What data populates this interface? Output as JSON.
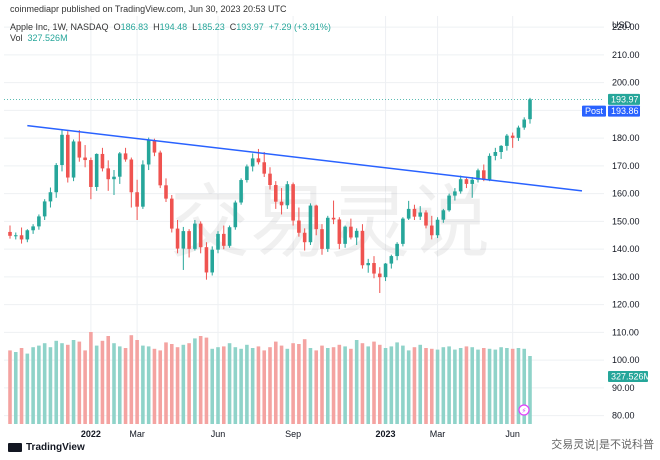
{
  "header": {
    "line1": "coinmediapr published on TradingView.com, Jun 30, 2023 20:53 UTC",
    "symbol": "Apple Inc, 1W, NASDAQ",
    "o_key": "O",
    "o_val": "186.83",
    "h_key": "H",
    "h_val": "194.48",
    "l_key": "L",
    "l_val": "185.23",
    "c_key": "C",
    "c_val": "193.97",
    "change": "+7.29 (+3.91%)",
    "vol_key": "Vol",
    "vol_val": "327.526M"
  },
  "branding": {
    "tradingview": "TradingView",
    "watermark": "交易灵说",
    "wechat": "交易灵说|是不说科普"
  },
  "colors": {
    "up": "#26a69a",
    "down": "#ef5350",
    "vol_up": "#8fd3c9",
    "vol_down": "#f4a3a1",
    "trendline": "#2962ff",
    "post_badge": "#2962ff",
    "price_badge": "#26a69a"
  },
  "chart_data": {
    "type": "candlestick",
    "currency": "USD",
    "y_ticks": [
      "220.00",
      "210.00",
      "200.00",
      "190.00",
      "180.00",
      "170.00",
      "160.00",
      "150.00",
      "140.00",
      "130.00",
      "120.00",
      "110.00",
      "100.00",
      "90.00",
      "80.00"
    ],
    "ylim": [
      77,
      224
    ],
    "x_tick_labels": [
      {
        "label": "2022",
        "i": 14
      },
      {
        "label": "Mar",
        "i": 22
      },
      {
        "label": "Jun",
        "i": 36
      },
      {
        "label": "Sep",
        "i": 49
      },
      {
        "label": "2023",
        "i": 65
      },
      {
        "label": "Mar",
        "i": 74
      },
      {
        "label": "Jun",
        "i": 87
      }
    ],
    "last_price": "193.97",
    "post_label": "Post",
    "post_price": "193.86",
    "volume_label": "327.526M",
    "trendline": {
      "start": {
        "i": 3,
        "price": 184.5
      },
      "end": {
        "i": 99,
        "price": 161.0
      }
    },
    "candles": [
      [
        146.2,
        148.5,
        143.8,
        144.8
      ],
      [
        144.8,
        146.0,
        143.5,
        145.0
      ],
      [
        145.0,
        147.8,
        142.0,
        143.5
      ],
      [
        143.5,
        147.2,
        142.5,
        146.8
      ],
      [
        146.8,
        149.0,
        145.5,
        148.2
      ],
      [
        148.2,
        152.5,
        147.0,
        151.8
      ],
      [
        151.8,
        158.0,
        150.5,
        157.2
      ],
      [
        157.2,
        162.2,
        155.0,
        160.5
      ],
      [
        160.5,
        171.0,
        158.5,
        170.3
      ],
      [
        170.3,
        182.8,
        168.0,
        181.2
      ],
      [
        181.2,
        182.5,
        164.0,
        165.8
      ],
      [
        165.8,
        179.5,
        164.5,
        178.8
      ],
      [
        178.8,
        182.9,
        171.5,
        173.0
      ],
      [
        173.0,
        177.5,
        169.5,
        172.1
      ],
      [
        172.1,
        173.0,
        158.0,
        162.4
      ],
      [
        162.4,
        174.5,
        161.0,
        174.3
      ],
      [
        174.3,
        176.5,
        168.0,
        169.1
      ],
      [
        169.1,
        172.0,
        161.0,
        165.2
      ],
      [
        165.2,
        168.5,
        159.5,
        166.1
      ],
      [
        166.1,
        175.0,
        163.5,
        174.5
      ],
      [
        174.5,
        176.5,
        171.5,
        172.3
      ],
      [
        172.3,
        173.0,
        155.0,
        160.5
      ],
      [
        160.5,
        165.0,
        150.5,
        155.3
      ],
      [
        155.3,
        172.0,
        154.5,
        170.5
      ],
      [
        170.5,
        180.2,
        168.5,
        179.2
      ],
      [
        179.2,
        179.8,
        173.5,
        174.8
      ],
      [
        174.8,
        175.5,
        162.0,
        163.0
      ],
      [
        163.0,
        165.5,
        157.0,
        158.2
      ],
      [
        158.2,
        159.5,
        146.0,
        147.4
      ],
      [
        147.4,
        150.5,
        138.5,
        140.2
      ],
      [
        140.2,
        148.0,
        132.5,
        146.5
      ],
      [
        146.5,
        147.2,
        137.0,
        140.1
      ],
      [
        140.1,
        150.5,
        139.5,
        149.2
      ],
      [
        149.2,
        150.0,
        138.5,
        140.7
      ],
      [
        140.7,
        142.5,
        129.0,
        131.6
      ],
      [
        131.6,
        141.0,
        130.5,
        139.8
      ],
      [
        139.8,
        146.5,
        138.5,
        145.5
      ],
      [
        145.5,
        148.5,
        140.0,
        141.2
      ],
      [
        141.2,
        148.5,
        140.5,
        147.9
      ],
      [
        147.9,
        157.5,
        147.0,
        156.8
      ],
      [
        156.8,
        165.5,
        156.0,
        164.9
      ],
      [
        164.9,
        170.5,
        164.0,
        169.8
      ],
      [
        169.8,
        174.5,
        168.0,
        172.7
      ],
      [
        172.7,
        176.1,
        170.5,
        171.3
      ],
      [
        171.3,
        175.0,
        166.0,
        167.2
      ],
      [
        167.2,
        169.5,
        161.5,
        163.1
      ],
      [
        163.1,
        164.5,
        154.5,
        157.1
      ],
      [
        157.1,
        162.0,
        152.5,
        155.8
      ],
      [
        155.8,
        164.5,
        154.5,
        163.4
      ],
      [
        163.4,
        164.0,
        148.5,
        150.3
      ],
      [
        150.3,
        155.0,
        144.5,
        145.9
      ],
      [
        145.9,
        147.5,
        139.5,
        142.5
      ],
      [
        142.5,
        156.5,
        141.5,
        155.7
      ],
      [
        155.7,
        156.0,
        145.0,
        147.2
      ],
      [
        147.2,
        149.0,
        138.0,
        140.1
      ],
      [
        140.1,
        152.0,
        139.0,
        151.3
      ],
      [
        151.3,
        157.5,
        149.0,
        150.7
      ],
      [
        150.7,
        151.5,
        140.0,
        141.9
      ],
      [
        141.9,
        148.5,
        140.5,
        148.1
      ],
      [
        148.1,
        151.0,
        143.5,
        144.2
      ],
      [
        144.2,
        147.5,
        141.5,
        146.6
      ],
      [
        146.6,
        149.0,
        133.0,
        134.2
      ],
      [
        134.2,
        136.5,
        131.5,
        135.0
      ],
      [
        135.0,
        137.5,
        129.5,
        131.2
      ],
      [
        131.2,
        133.5,
        124.2,
        129.9
      ],
      [
        129.9,
        135.0,
        128.5,
        134.8
      ],
      [
        134.8,
        138.0,
        133.0,
        137.5
      ],
      [
        137.5,
        142.5,
        136.0,
        141.9
      ],
      [
        141.9,
        151.5,
        141.0,
        151.0
      ],
      [
        151.0,
        157.4,
        150.5,
        154.5
      ],
      [
        154.5,
        156.0,
        150.5,
        151.7
      ],
      [
        151.7,
        155.5,
        150.5,
        153.2
      ],
      [
        153.2,
        154.0,
        147.5,
        148.5
      ],
      [
        148.5,
        152.0,
        143.5,
        145.0
      ],
      [
        145.0,
        151.5,
        144.0,
        150.6
      ],
      [
        150.6,
        154.5,
        149.5,
        154.0
      ],
      [
        154.0,
        160.0,
        153.5,
        159.3
      ],
      [
        159.3,
        162.0,
        157.5,
        160.8
      ],
      [
        160.8,
        166.5,
        160.0,
        165.2
      ],
      [
        165.2,
        166.0,
        162.0,
        163.5
      ],
      [
        163.5,
        166.0,
        158.5,
        165.0
      ],
      [
        165.0,
        169.0,
        164.0,
        168.4
      ],
      [
        168.4,
        170.5,
        164.5,
        165.0
      ],
      [
        165.0,
        174.5,
        164.5,
        173.6
      ],
      [
        173.6,
        176.5,
        172.0,
        175.0
      ],
      [
        175.0,
        177.5,
        172.5,
        177.2
      ],
      [
        177.2,
        181.5,
        175.5,
        180.9
      ],
      [
        180.9,
        182.0,
        176.5,
        180.1
      ],
      [
        180.1,
        184.5,
        179.0,
        183.8
      ],
      [
        183.8,
        187.5,
        183.0,
        186.7
      ],
      [
        186.83,
        194.48,
        185.23,
        193.97
      ]
    ],
    "volumes": [
      92,
      90,
      95,
      88,
      96,
      98,
      101,
      96,
      104,
      101,
      99,
      105,
      103,
      92,
      115,
      98,
      104,
      110,
      101,
      97,
      95,
      111,
      105,
      98,
      97,
      94,
      92,
      102,
      100,
      96,
      99,
      101,
      107,
      110,
      108,
      94,
      96,
      97,
      101,
      96,
      94,
      99,
      95,
      97,
      92,
      96,
      103,
      98,
      94,
      101,
      100,
      106,
      95,
      92,
      98,
      95,
      96,
      99,
      97,
      94,
      105,
      101,
      97,
      103,
      99,
      95,
      97,
      102,
      98,
      92,
      96,
      99,
      95,
      94,
      93,
      96,
      97,
      93,
      95,
      97,
      96,
      93,
      95,
      94,
      93,
      96,
      95,
      94,
      95,
      94,
      85
    ],
    "vol_ylim": [
      0,
      155
    ]
  }
}
